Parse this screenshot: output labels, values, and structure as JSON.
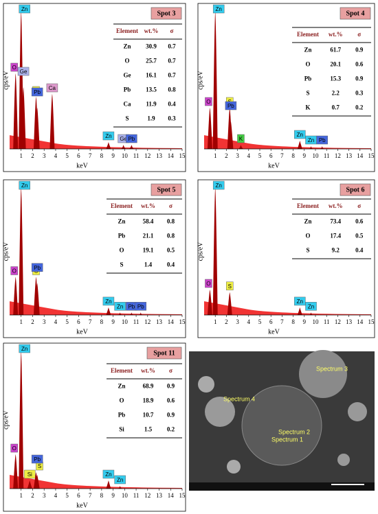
{
  "panels": [
    {
      "spot": "Spot 3",
      "x_label": "keV",
      "y_label": "cps/eV",
      "xlim": [
        0,
        15
      ],
      "xticks": [
        1,
        2,
        3,
        4,
        5,
        6,
        7,
        8,
        9,
        10,
        11,
        12,
        13,
        14,
        15
      ],
      "table": {
        "header": [
          "Element",
          "wt.%",
          "σ"
        ],
        "rows": [
          [
            "Zn",
            "30.9",
            "0.7"
          ],
          [
            "O",
            "25.7",
            "0.7"
          ],
          [
            "Ge",
            "16.1",
            "0.7"
          ],
          [
            "Pb",
            "13.5",
            "0.8"
          ],
          [
            "Ca",
            "11.9",
            "0.4"
          ],
          [
            "S",
            "1.9",
            "0.3"
          ]
        ]
      },
      "peaks": [
        {
          "label": "O",
          "x": 0.52,
          "h": 0.55,
          "color": "#cc44cc"
        },
        {
          "label": "Zn",
          "x": 1.0,
          "h": 1.0,
          "color": "#33ccee"
        },
        {
          "label": "Ge",
          "x": 1.2,
          "h": 0.45,
          "color": "#aab0e8"
        },
        {
          "label": "S",
          "x": 2.3,
          "h": 0.38,
          "color": "#eeee44"
        },
        {
          "label": "Pb",
          "x": 2.4,
          "h": 0.3,
          "color": "#4466dd"
        },
        {
          "label": "Ca",
          "x": 3.7,
          "h": 0.4,
          "color": "#dd99cc"
        },
        {
          "label": "Zn",
          "x": 8.6,
          "h": 0.05,
          "color": "#33ccee"
        },
        {
          "label": "Ge",
          "x": 9.9,
          "h": 0.03,
          "color": "#aab0e8"
        },
        {
          "label": "Pb",
          "x": 10.6,
          "h": 0.03,
          "color": "#4466dd"
        }
      ]
    },
    {
      "spot": "Spot 4",
      "x_label": "keV",
      "y_label": "cps/eV",
      "xlim": [
        0,
        15
      ],
      "xticks": [
        1,
        2,
        3,
        4,
        5,
        6,
        7,
        8,
        9,
        10,
        11,
        12,
        13,
        14,
        15
      ],
      "table": {
        "header": [
          "Element",
          "wt.%",
          "σ"
        ],
        "rows": [
          [
            "Zn",
            "61.7",
            "0.9"
          ],
          [
            "O",
            "20.1",
            "0.6"
          ],
          [
            "Pb",
            "15.3",
            "0.9"
          ],
          [
            "S",
            "2.2",
            "0.3"
          ],
          [
            "K",
            "0.7",
            "0.2"
          ]
        ]
      },
      "peaks": [
        {
          "label": "O",
          "x": 0.52,
          "h": 0.3,
          "color": "#cc44cc"
        },
        {
          "label": "Zn",
          "x": 1.0,
          "h": 1.0,
          "color": "#33ccee"
        },
        {
          "label": "S",
          "x": 2.3,
          "h": 0.3,
          "color": "#eeee44"
        },
        {
          "label": "Pb",
          "x": 2.4,
          "h": 0.2,
          "color": "#4466dd"
        },
        {
          "label": "K",
          "x": 3.3,
          "h": 0.03,
          "color": "#44cc44"
        },
        {
          "label": "Zn",
          "x": 8.6,
          "h": 0.06,
          "color": "#33ccee"
        },
        {
          "label": "Zn",
          "x": 9.6,
          "h": 0.02,
          "color": "#33ccee"
        },
        {
          "label": "Pb",
          "x": 10.6,
          "h": 0.02,
          "color": "#4466dd"
        }
      ]
    },
    {
      "spot": "Spot 5",
      "x_label": "keV",
      "y_label": "cps/eV",
      "xlim": [
        0,
        15
      ],
      "xticks": [
        1,
        2,
        3,
        4,
        5,
        6,
        7,
        8,
        9,
        10,
        11,
        12,
        13,
        14,
        15
      ],
      "table": {
        "header": [
          "Element",
          "wt.%",
          "σ"
        ],
        "rows": [
          [
            "Zn",
            "58.4",
            "0.8"
          ],
          [
            "Pb",
            "21.1",
            "0.8"
          ],
          [
            "O",
            "19.1",
            "0.5"
          ],
          [
            "S",
            "1.4",
            "0.4"
          ]
        ]
      },
      "peaks": [
        {
          "label": "O",
          "x": 0.52,
          "h": 0.3,
          "color": "#cc44cc"
        },
        {
          "label": "Zn",
          "x": 1.0,
          "h": 1.0,
          "color": "#33ccee"
        },
        {
          "label": "S",
          "x": 2.3,
          "h": 0.3,
          "color": "#eeee44"
        },
        {
          "label": "Pb",
          "x": 2.4,
          "h": 0.25,
          "color": "#4466dd"
        },
        {
          "label": "Zn",
          "x": 8.6,
          "h": 0.06,
          "color": "#33ccee"
        },
        {
          "label": "Zn",
          "x": 9.6,
          "h": 0.02,
          "color": "#33ccee"
        },
        {
          "label": "Pb",
          "x": 10.6,
          "h": 0.02,
          "color": "#4466dd"
        },
        {
          "label": "Pb",
          "x": 11.4,
          "h": 0.02,
          "color": "#4466dd"
        }
      ]
    },
    {
      "spot": "Spot 6",
      "x_label": "keV",
      "y_label": "cps/eV",
      "xlim": [
        0,
        15
      ],
      "xticks": [
        1,
        2,
        3,
        4,
        5,
        6,
        7,
        8,
        9,
        10,
        11,
        12,
        13,
        14,
        15
      ],
      "table": {
        "header": [
          "Element",
          "wt.%",
          "σ"
        ],
        "rows": [
          [
            "Zn",
            "73.4",
            "0.6"
          ],
          [
            "O",
            "17.4",
            "0.5"
          ],
          [
            "S",
            "9.2",
            "0.4"
          ]
        ]
      },
      "peaks": [
        {
          "label": "O",
          "x": 0.52,
          "h": 0.2,
          "color": "#cc44cc"
        },
        {
          "label": "Zn",
          "x": 1.0,
          "h": 1.0,
          "color": "#33ccee"
        },
        {
          "label": "S",
          "x": 2.3,
          "h": 0.18,
          "color": "#eeee44"
        },
        {
          "label": "Zn",
          "x": 8.6,
          "h": 0.06,
          "color": "#33ccee"
        },
        {
          "label": "Zn",
          "x": 9.6,
          "h": 0.02,
          "color": "#33ccee"
        }
      ]
    },
    {
      "spot": "Spot 11",
      "x_label": "keV",
      "y_label": "cps/eV",
      "xlim": [
        0,
        15
      ],
      "xticks": [
        1,
        2,
        3,
        4,
        5,
        6,
        7,
        8,
        9,
        10,
        11,
        12,
        13,
        14,
        15
      ],
      "table": {
        "header": [
          "Element",
          "wt.%",
          "σ"
        ],
        "rows": [
          [
            "Zn",
            "68.9",
            "0.9"
          ],
          [
            "O",
            "18.9",
            "0.6"
          ],
          [
            "Pb",
            "10.7",
            "0.9"
          ],
          [
            "Si",
            "1.5",
            "0.2"
          ]
        ]
      },
      "peaks": [
        {
          "label": "O",
          "x": 0.52,
          "h": 0.25,
          "color": "#cc44cc"
        },
        {
          "label": "Zn",
          "x": 1.0,
          "h": 1.0,
          "color": "#33ccee"
        },
        {
          "label": "Si",
          "x": 1.75,
          "h": 0.06,
          "color": "#eeee44"
        },
        {
          "label": "S",
          "x": 2.3,
          "h": 0.12,
          "color": "#eeee44"
        },
        {
          "label": "Pb",
          "x": 2.4,
          "h": 0.1,
          "color": "#4466dd"
        },
        {
          "label": "Zn",
          "x": 8.6,
          "h": 0.06,
          "color": "#33ccee"
        },
        {
          "label": "Zn",
          "x": 9.6,
          "h": 0.02,
          "color": "#33ccee"
        }
      ]
    }
  ],
  "sem": {
    "labels": [
      "Spectrum 3",
      "Spectrum 4",
      "Spectrum 2",
      "Spectrum 1"
    ]
  }
}
